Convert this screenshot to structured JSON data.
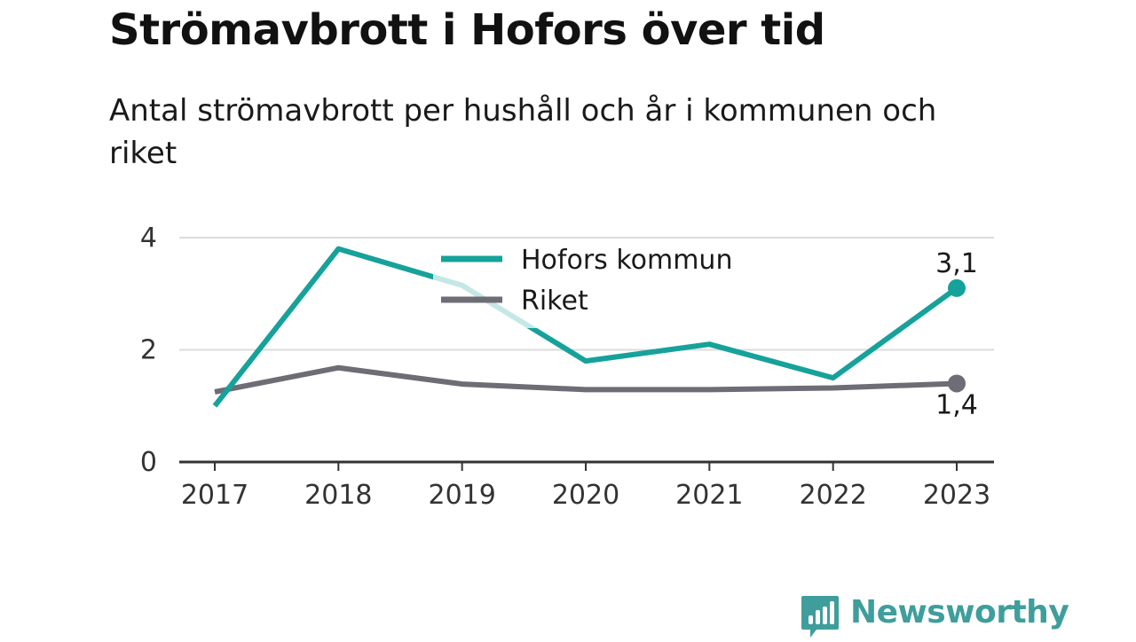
{
  "chart_data": {
    "type": "line",
    "title": "Strömavbrott i Hofors över tid",
    "subtitle": "Antal strömavbrott per hushåll och år i kommunen och riket",
    "categories": [
      "2017",
      "2018",
      "2019",
      "2020",
      "2021",
      "2022",
      "2023"
    ],
    "yticks": [
      "0",
      "2",
      "4"
    ],
    "ylim": [
      0,
      4
    ],
    "grid": true,
    "legend_position": "top-center",
    "series": [
      {
        "name": "Hofors kommun",
        "color": "#16a29a",
        "values": [
          1.0,
          3.8,
          3.15,
          1.8,
          2.1,
          1.5,
          3.1
        ],
        "end_label": "3,1"
      },
      {
        "name": "Riket",
        "color": "#6e6d75",
        "values": [
          1.25,
          1.68,
          1.39,
          1.29,
          1.29,
          1.32,
          1.4
        ],
        "end_label": "1,4"
      }
    ]
  },
  "branding": {
    "name": "Newsworthy",
    "icon": "newsworthy-logo-icon",
    "color": "#3f9e9b"
  }
}
